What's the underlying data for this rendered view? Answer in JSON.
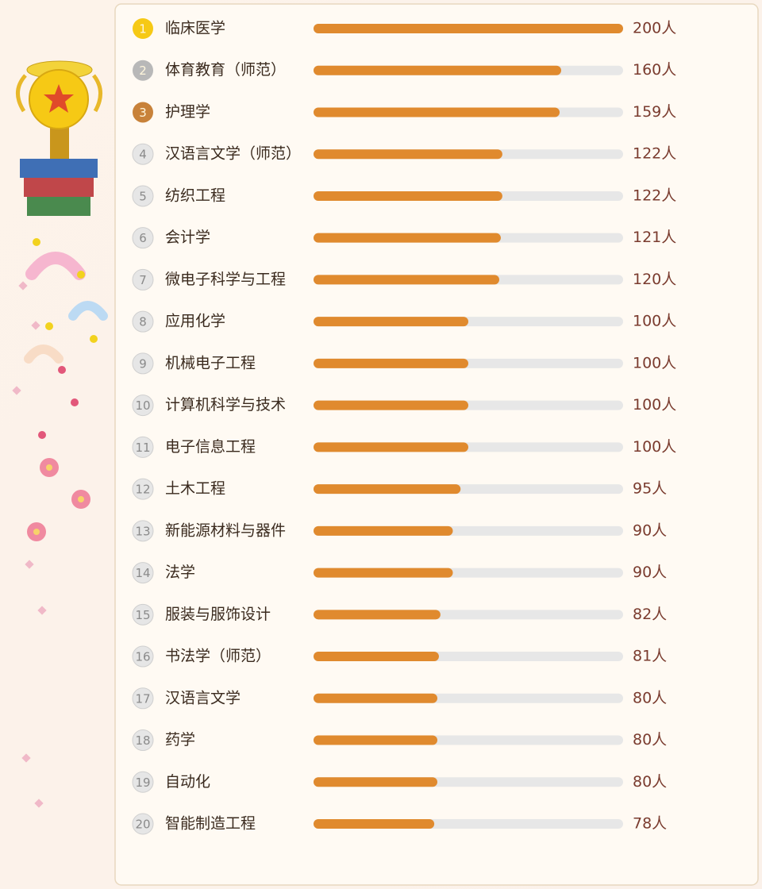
{
  "chart_data": {
    "type": "bar",
    "ranks": [
      1,
      2,
      3,
      4,
      5,
      6,
      7,
      8,
      9,
      10,
      11,
      12,
      13,
      14,
      15,
      16,
      17,
      18,
      19,
      20
    ],
    "categories": [
      "临床医学",
      "体育教育（师范）",
      "护理学",
      "汉语言文学（师范）",
      "纺织工程",
      "会计学",
      "微电子科学与工程",
      "应用化学",
      "机械电子工程",
      "计算机科学与技术",
      "电子信息工程",
      "土木工程",
      "新能源材料与器件",
      "法学",
      "服装与服饰设计",
      "书法学（师范）",
      "汉语言文学",
      "药学",
      "自动化",
      "智能制造工程"
    ],
    "values": [
      200,
      160,
      159,
      122,
      122,
      121,
      120,
      100,
      100,
      100,
      100,
      95,
      90,
      90,
      82,
      81,
      80,
      80,
      80,
      78
    ],
    "value_labels": [
      "200人",
      "160人",
      "159人",
      "122人",
      "122人",
      "121人",
      "120人",
      "100人",
      "100人",
      "100人",
      "100人",
      "95人",
      "90人",
      "90人",
      "82人",
      "81人",
      "80人",
      "80人",
      "80人",
      "78人"
    ],
    "color": "#e08a2e",
    "xlim": [
      0,
      200
    ]
  }
}
